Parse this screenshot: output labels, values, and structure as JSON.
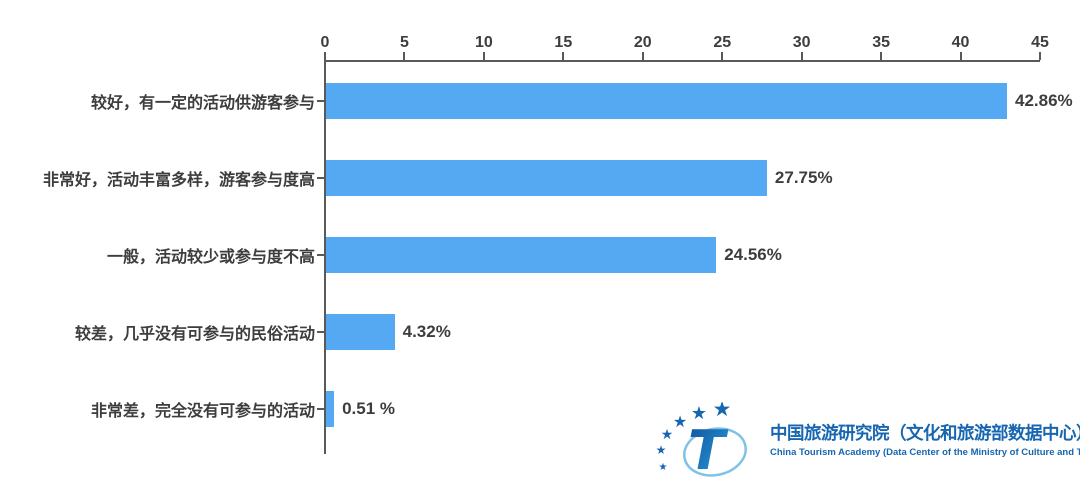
{
  "colors": {
    "bar": "#55a9f2",
    "text": "#3d3d3d",
    "axis": "#595959",
    "logo_blue": "#1766b0",
    "logo_gradient_start": "#0d4f9e",
    "logo_gradient_end": "#2fa0dc"
  },
  "chart_data": {
    "type": "bar",
    "orientation": "horizontal",
    "title": "",
    "xlabel": "",
    "ylabel": "",
    "categories": [
      "较好，有一定的活动供游客参与",
      "非常好，活动丰富多样，游客参与度高",
      "一般，活动较少或参与度不高",
      "较差，几乎没有可参与的民俗活动",
      "非常差，完全没有可参与的活动"
    ],
    "values": [
      42.86,
      27.75,
      24.56,
      4.32,
      0.51
    ],
    "value_labels": [
      "42.86%",
      "27.75%",
      "24.56%",
      "4.32%",
      "0.51 %"
    ],
    "xlim": [
      0,
      45
    ],
    "xticks": [
      0,
      5,
      10,
      15,
      20,
      25,
      30,
      35,
      40,
      45
    ],
    "grid": false,
    "legend": false
  },
  "footer_logo": {
    "star_glyph": "★",
    "t_glyph": "T",
    "name_cn": "中国旅游研究院（文化和旅游部数据中心）",
    "name_en": "China Tourism Academy (Data Center of the Ministry of Culture and Tourism)"
  }
}
